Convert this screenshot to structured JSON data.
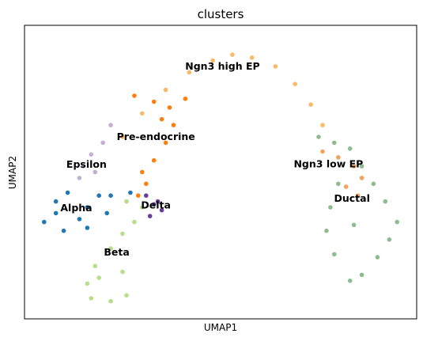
{
  "chart_data": {
    "type": "scatter",
    "title": "clusters",
    "xlabel": "UMAP1",
    "ylabel": "UMAP2",
    "grid": false,
    "legend": "on data",
    "xlim": [
      0,
      100
    ],
    "ylim": [
      0,
      100
    ],
    "clusters": [
      {
        "label": "Ngn3 high EP",
        "color": "#fbb869",
        "cx": 50.5,
        "cy": 86.0,
        "points": [
          [
            25,
            62
          ],
          [
            30,
            70
          ],
          [
            36,
            78
          ],
          [
            42,
            84
          ],
          [
            48,
            88
          ],
          [
            53,
            90
          ],
          [
            58,
            89
          ],
          [
            64,
            86
          ],
          [
            69,
            80
          ],
          [
            73,
            73
          ],
          [
            76,
            66
          ]
        ]
      },
      {
        "label": "Pre-endocrine",
        "color": "#ff7f0e",
        "cx": 33.5,
        "cy": 62.0,
        "points": [
          [
            28,
            76
          ],
          [
            33,
            74
          ],
          [
            37,
            72
          ],
          [
            38,
            66
          ],
          [
            36,
            60
          ],
          [
            33,
            54
          ],
          [
            30,
            50
          ],
          [
            29,
            42
          ],
          [
            31,
            46
          ],
          [
            35,
            68
          ],
          [
            41,
            75
          ]
        ]
      },
      {
        "label": "Epsilon",
        "color": "#c5b0d5",
        "cx": 15.8,
        "cy": 52.5,
        "points": [
          [
            22,
            66
          ],
          [
            20,
            60
          ],
          [
            17,
            56
          ],
          [
            15,
            52
          ],
          [
            14,
            48
          ],
          [
            18,
            50
          ]
        ]
      },
      {
        "label": "Alpha",
        "color": "#1f77b4",
        "cx": 13.2,
        "cy": 37.8,
        "points": [
          [
            5,
            33
          ],
          [
            8,
            40
          ],
          [
            11,
            43
          ],
          [
            16,
            38
          ],
          [
            19,
            42
          ],
          [
            22,
            42
          ],
          [
            27,
            43
          ],
          [
            10,
            30
          ],
          [
            16,
            31
          ],
          [
            21,
            36
          ],
          [
            14,
            34
          ],
          [
            8,
            36
          ]
        ]
      },
      {
        "label": "Delta",
        "color": "#6a3d9a",
        "cx": 33.5,
        "cy": 38.7,
        "points": [
          [
            31,
            42
          ],
          [
            34,
            40
          ],
          [
            35,
            37
          ],
          [
            32,
            35
          ],
          [
            33,
            39
          ]
        ]
      },
      {
        "label": "Beta",
        "color": "#b5df88",
        "cx": 23.5,
        "cy": 22.6,
        "points": [
          [
            26,
            40
          ],
          [
            30,
            38
          ],
          [
            28,
            33
          ],
          [
            25,
            29
          ],
          [
            22,
            24
          ],
          [
            18,
            18
          ],
          [
            16,
            12
          ],
          [
            17,
            7
          ],
          [
            22,
            6
          ],
          [
            26,
            8
          ],
          [
            25,
            16
          ],
          [
            19,
            14
          ]
        ]
      },
      {
        "label": "Ngn3 low EP",
        "color": "#f4a15b",
        "cx": 77.5,
        "cy": 52.7,
        "points": [
          [
            76,
            57
          ],
          [
            80,
            55
          ],
          [
            84,
            52
          ],
          [
            86,
            48
          ],
          [
            82,
            45
          ],
          [
            85,
            42
          ]
        ]
      },
      {
        "label": "Ductal",
        "color": "#8fbc8f",
        "cx": 83.5,
        "cy": 41.0,
        "points": [
          [
            75,
            62
          ],
          [
            79,
            60
          ],
          [
            83,
            58
          ],
          [
            86,
            52
          ],
          [
            89,
            46
          ],
          [
            92,
            40
          ],
          [
            95,
            33
          ],
          [
            93,
            27
          ],
          [
            90,
            21
          ],
          [
            86,
            15
          ],
          [
            83,
            13
          ],
          [
            79,
            22
          ],
          [
            77,
            30
          ],
          [
            78,
            38
          ],
          [
            80,
            46
          ],
          [
            84,
            32
          ]
        ]
      }
    ]
  }
}
